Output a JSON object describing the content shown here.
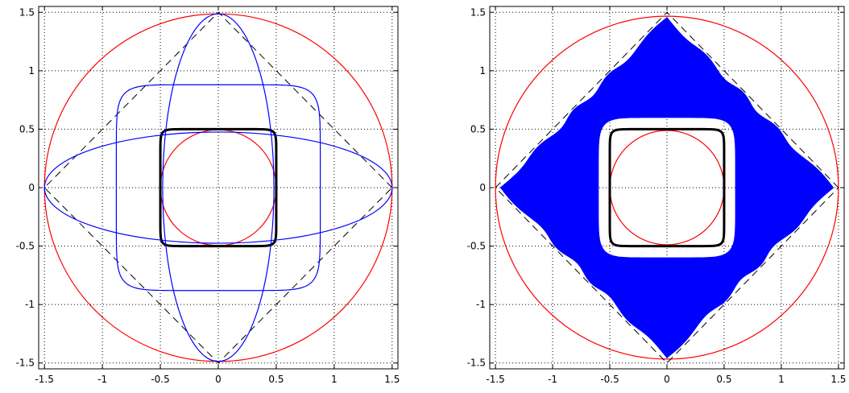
{
  "colors": {
    "axes": "#000000",
    "grid": "#000000",
    "circle": "#ff0000",
    "curve": "#0000ff",
    "fill": "#0000ff",
    "square": "#000000",
    "diamond": "#000000"
  },
  "chart_data": [
    {
      "type": "line",
      "xlim": [
        -1.55,
        1.55
      ],
      "ylim": [
        -1.55,
        1.55
      ],
      "xticks": [
        -1.5,
        -1,
        -0.5,
        0,
        0.5,
        1,
        1.5
      ],
      "yticks": [
        -1.5,
        -1,
        -0.5,
        0,
        0.5,
        1,
        1.5
      ],
      "xtick_labels": [
        "-1.5",
        "-1",
        "-0.5",
        "0",
        "0.5",
        "1",
        "1.5"
      ],
      "ytick_labels": [
        "-1.5",
        "-1",
        "-0.5",
        "0",
        "0.5",
        "1",
        "1.5"
      ],
      "grid": true,
      "grid_style": "dotted",
      "series": [
        {
          "kind": "circle",
          "radius": 1.5,
          "color": "red",
          "style": "solid"
        },
        {
          "kind": "circle",
          "radius": 0.5,
          "color": "red",
          "style": "solid"
        },
        {
          "kind": "diamond",
          "vertices": [
            [
              1.5,
              0
            ],
            [
              0,
              1.5
            ],
            [
              -1.5,
              0
            ],
            [
              0,
              -1.5
            ]
          ],
          "color": "black",
          "style": "dashed"
        },
        {
          "kind": "rounded-square",
          "half_width": 0.5,
          "color": "black",
          "style": "solid-thick"
        },
        {
          "kind": "ellipse",
          "semi_x": 1.5,
          "semi_y": 0.48,
          "color": "blue",
          "style": "solid"
        },
        {
          "kind": "ellipse",
          "semi_x": 0.48,
          "semi_y": 1.5,
          "color": "blue",
          "style": "solid"
        },
        {
          "kind": "rounded-square",
          "half_width": 0.88,
          "color": "blue",
          "style": "solid"
        }
      ]
    },
    {
      "type": "area",
      "xlim": [
        -1.55,
        1.55
      ],
      "ylim": [
        -1.55,
        1.55
      ],
      "xticks": [
        -1.5,
        -1,
        -0.5,
        0,
        0.5,
        1,
        1.5
      ],
      "yticks": [
        -1.5,
        -1,
        -0.5,
        0,
        0.5,
        1,
        1.5
      ],
      "xtick_labels": [
        "-1.5",
        "-1",
        "-0.5",
        "0",
        "0.5",
        "1",
        "1.5"
      ],
      "ytick_labels": [
        "-1.5",
        "-1",
        "-0.5",
        "0",
        "0.5",
        "1",
        "1.5"
      ],
      "grid": true,
      "grid_style": "dotted",
      "series": [
        {
          "kind": "filled-region",
          "outer": "wavy-diamond",
          "outer_extent": 1.5,
          "inner_half_width": 0.6,
          "color": "blue"
        },
        {
          "kind": "circle",
          "radius": 1.5,
          "color": "red",
          "style": "solid"
        },
        {
          "kind": "circle",
          "radius": 0.5,
          "color": "red",
          "style": "solid"
        },
        {
          "kind": "diamond",
          "vertices": [
            [
              1.5,
              0
            ],
            [
              0,
              1.5
            ],
            [
              -1.5,
              0
            ],
            [
              0,
              -1.5
            ]
          ],
          "color": "black",
          "style": "dashed"
        },
        {
          "kind": "rounded-square",
          "half_width": 0.5,
          "color": "black",
          "style": "solid-thick"
        }
      ]
    }
  ]
}
